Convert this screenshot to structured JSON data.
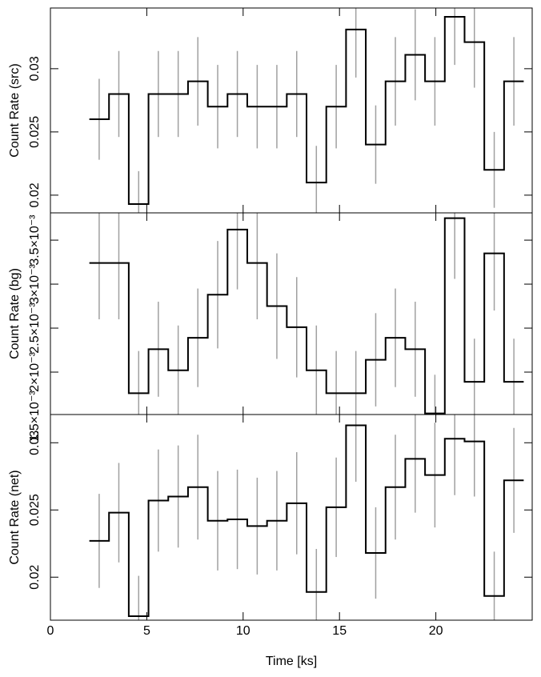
{
  "chart_data": [
    {
      "type": "step",
      "ylabel": "Count Rate (src)",
      "x": [
        2.53,
        3.55,
        4.58,
        5.6,
        6.63,
        7.65,
        8.68,
        9.7,
        10.73,
        11.75,
        12.78,
        13.8,
        14.83,
        15.85,
        16.88,
        17.9,
        18.93,
        19.95,
        20.98,
        22.0,
        23.03,
        24.05
      ],
      "values": [
        0.026,
        0.028,
        0.0193,
        0.028,
        0.028,
        0.029,
        0.027,
        0.028,
        0.027,
        0.027,
        0.028,
        0.021,
        0.027,
        0.0331,
        0.024,
        0.029,
        0.0311,
        0.029,
        0.0341,
        0.0321,
        0.022,
        0.029
      ],
      "errors": [
        0.0032,
        0.0034,
        0.0026,
        0.0034,
        0.0034,
        0.0035,
        0.0033,
        0.0034,
        0.0033,
        0.0033,
        0.0034,
        0.0029,
        0.0033,
        0.0038,
        0.0031,
        0.0035,
        0.0036,
        0.0035,
        0.0038,
        0.0036,
        0.003,
        0.0035
      ],
      "color": "#000000",
      "error_color": "#a0a0a0",
      "xlim": [
        0,
        25
      ],
      "xticks": [
        0,
        5,
        10,
        15,
        20
      ],
      "ylim": [
        0.0186,
        0.0348
      ],
      "yticks": [
        0.02,
        0.025,
        0.03
      ]
    },
    {
      "type": "step",
      "ylabel": "Count Rate (bg)",
      "x": [
        2.53,
        3.55,
        4.58,
        5.6,
        6.63,
        7.65,
        8.68,
        9.7,
        10.73,
        11.75,
        12.78,
        13.8,
        14.83,
        15.85,
        16.88,
        17.9,
        18.93,
        19.95,
        20.98,
        22.0,
        23.03,
        24.05
      ],
      "values": [
        0.00324,
        0.00324,
        0.00176,
        0.00226,
        0.00202,
        0.00239,
        0.00288,
        0.00362,
        0.00324,
        0.00275,
        0.00251,
        0.00202,
        0.00176,
        0.00176,
        0.00214,
        0.00239,
        0.00226,
        0.00153,
        0.00375,
        0.00189,
        0.00335,
        0.00189
      ],
      "errors": [
        0.00064,
        0.00064,
        0.00048,
        0.00054,
        0.00051,
        0.00056,
        0.00061,
        0.00068,
        0.00064,
        0.0006,
        0.00057,
        0.00051,
        0.00048,
        0.00048,
        0.00053,
        0.00056,
        0.00054,
        0.00044,
        0.00069,
        0.00049,
        0.00065,
        0.00049
      ],
      "color": "#000000",
      "error_color": "#a0a0a0",
      "xlim": [
        0,
        25
      ],
      "xticks": [
        0,
        5,
        10,
        15,
        20
      ],
      "ylim": [
        0.001518,
        0.00381
      ],
      "yticks": [
        {
          "value": 0.0015,
          "label": "1.5×10⁻³"
        },
        {
          "value": 0.002,
          "label": "2×10⁻³"
        },
        {
          "value": 0.0025,
          "label": "2.5×10⁻³"
        },
        {
          "value": 0.003,
          "label": "3×10⁻³"
        },
        {
          "value": 0.0035,
          "label": "3.5×10⁻³"
        }
      ]
    },
    {
      "type": "step",
      "ylabel": "Count Rate (net)",
      "xlabel": "Time [ks]",
      "x": [
        2.53,
        3.55,
        4.58,
        5.6,
        6.63,
        7.65,
        8.68,
        9.7,
        10.73,
        11.75,
        12.78,
        13.8,
        14.83,
        15.85,
        16.88,
        17.9,
        18.93,
        19.95,
        20.98,
        22.0,
        23.03,
        24.05
      ],
      "values": [
        0.0227,
        0.0248,
        0.0171,
        0.0257,
        0.026,
        0.0267,
        0.0242,
        0.0243,
        0.0238,
        0.0242,
        0.0255,
        0.0189,
        0.0252,
        0.0313,
        0.0218,
        0.0267,
        0.0288,
        0.0276,
        0.0303,
        0.0301,
        0.0186,
        0.0272
      ],
      "errors": [
        0.0035,
        0.0037,
        0.003,
        0.0038,
        0.0038,
        0.0039,
        0.0037,
        0.0037,
        0.0036,
        0.0037,
        0.0038,
        0.0032,
        0.0037,
        0.0042,
        0.0034,
        0.0039,
        0.004,
        0.0039,
        0.0042,
        0.0041,
        0.0033,
        0.0039
      ],
      "color": "#000000",
      "error_color": "#a0a0a0",
      "xlim": [
        0,
        25
      ],
      "xticks": [
        0,
        5,
        10,
        15,
        20
      ],
      "ylim": [
        0.0168,
        0.0321
      ],
      "yticks": [
        0.02,
        0.025,
        0.03
      ]
    }
  ]
}
